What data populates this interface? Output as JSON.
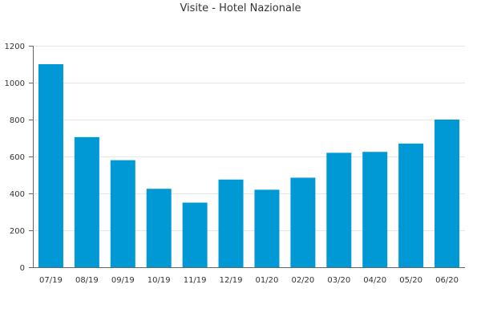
{
  "chart_data": {
    "type": "bar",
    "title": "Visite - Hotel Nazionale",
    "xlabel": "",
    "ylabel": "",
    "categories": [
      "07/19",
      "08/19",
      "09/19",
      "10/19",
      "11/19",
      "12/19",
      "01/20",
      "02/20",
      "03/20",
      "04/20",
      "05/20",
      "06/20"
    ],
    "values": [
      1100,
      705,
      580,
      425,
      350,
      475,
      420,
      485,
      620,
      625,
      670,
      800
    ],
    "ylim": [
      0,
      1200
    ],
    "yticks": [
      0,
      200,
      400,
      600,
      800,
      1000,
      1200
    ],
    "grid": true,
    "bar_color": "#0099d6",
    "legend": false
  }
}
